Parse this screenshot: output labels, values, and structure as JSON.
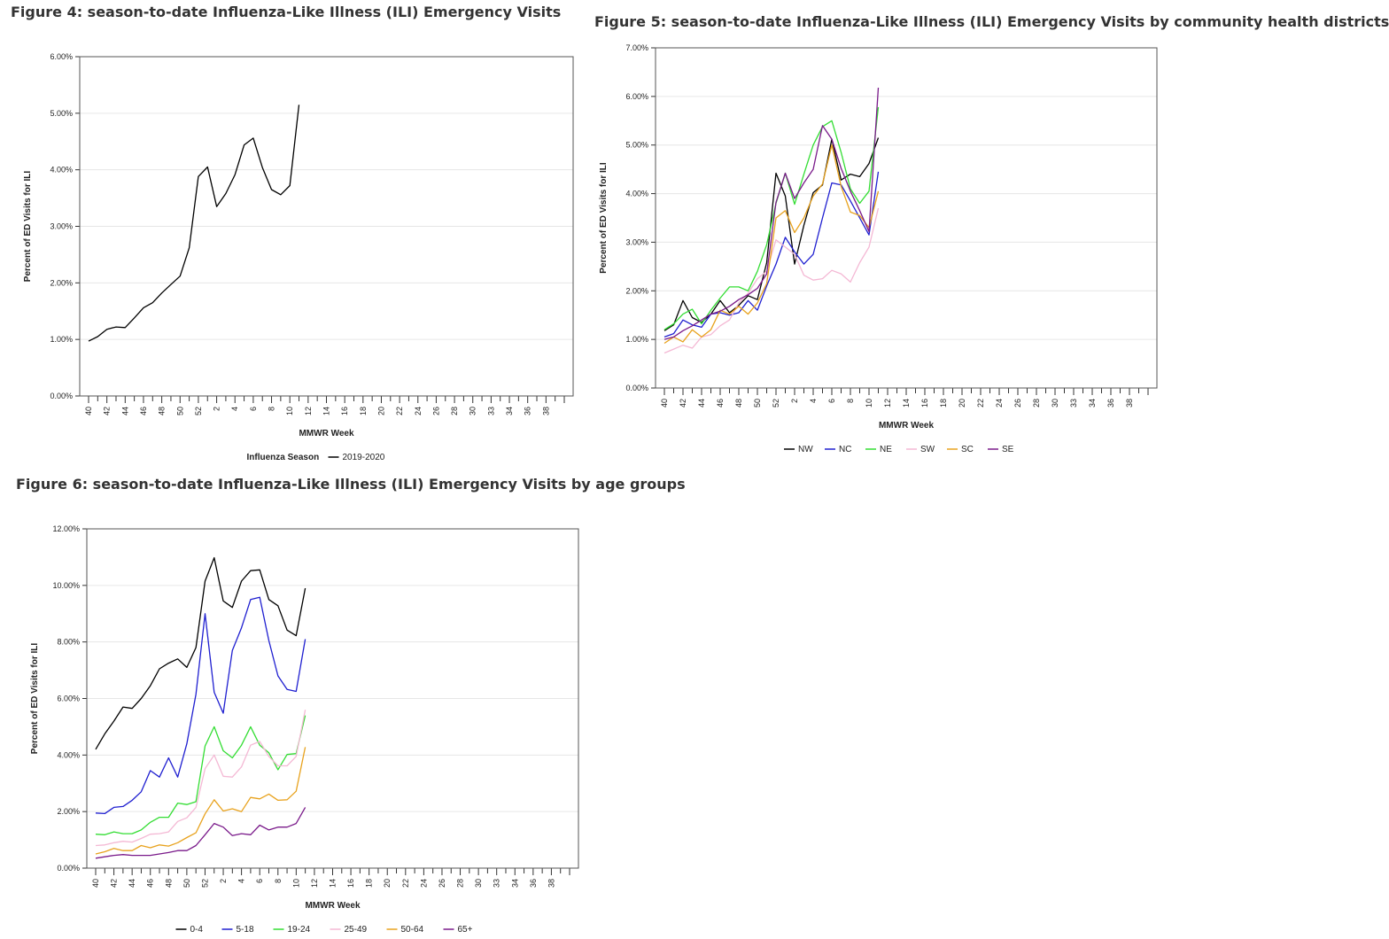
{
  "figures": [
    {
      "title": "Figure 4: season-to-date Influenza-Like Illness (ILI) Emergency Visits"
    },
    {
      "title": "Figure 5: season-to-date Influenza-Like Illness (ILI) Emergency Visits by community health districts"
    },
    {
      "title": "Figure 6: season-to-date Influenza-Like Illness (ILI) Emergency Visits by age groups"
    }
  ],
  "chart_data": [
    {
      "type": "line",
      "title": "Figure 4: season-to-date Influenza-Like Illness (ILI) Emergency Visits",
      "xlabel": "MMWR Week",
      "ylabel": "Percent of ED Visits for ILI",
      "ylim": [
        0,
        6
      ],
      "yticks": [
        "0.00%",
        "1.00%",
        "2.00%",
        "3.00%",
        "4.00%",
        "5.00%",
        "6.00%"
      ],
      "xtick_labels": [
        "40",
        "42",
        "44",
        "46",
        "48",
        "50",
        "52",
        "2",
        "4",
        "6",
        "8",
        "10",
        "12",
        "14",
        "16",
        "18",
        "20",
        "22",
        "24",
        "26",
        "28",
        "30",
        "33",
        "34",
        "36",
        "38"
      ],
      "week_count": 53,
      "grid": true,
      "legend": {
        "title": "Influenza Season",
        "position": "bottom"
      },
      "series": [
        {
          "name": "2019-2020",
          "color": "#000000",
          "values": [
            0.97,
            1.05,
            1.18,
            1.22,
            1.21,
            1.38,
            1.56,
            1.65,
            1.82,
            1.97,
            2.12,
            2.62,
            3.88,
            4.05,
            3.35,
            3.58,
            3.91,
            4.44,
            4.56,
            4.04,
            3.65,
            3.56,
            3.72,
            5.15
          ]
        }
      ]
    },
    {
      "type": "line",
      "title": "Figure 5: season-to-date Influenza-Like Illness (ILI) Emergency Visits by community health districts",
      "xlabel": "MMWR Week",
      "ylabel": "Percent of ED Visits for ILI",
      "ylim": [
        0,
        7
      ],
      "yticks": [
        "0.00%",
        "1.00%",
        "2.00%",
        "3.00%",
        "4.00%",
        "5.00%",
        "6.00%",
        "7.00%"
      ],
      "xtick_labels": [
        "40",
        "42",
        "44",
        "46",
        "48",
        "50",
        "52",
        "2",
        "4",
        "6",
        "8",
        "10",
        "12",
        "14",
        "16",
        "18",
        "20",
        "22",
        "24",
        "26",
        "28",
        "30",
        "33",
        "34",
        "36",
        "38"
      ],
      "week_count": 53,
      "grid": true,
      "legend": {
        "position": "bottom"
      },
      "series": [
        {
          "name": "NW",
          "color": "#000000",
          "values": [
            1.18,
            1.3,
            1.8,
            1.45,
            1.35,
            1.52,
            1.8,
            1.55,
            1.7,
            1.9,
            1.82,
            2.58,
            4.42,
            3.95,
            2.55,
            3.35,
            4.02,
            4.18,
            5.12,
            4.28,
            4.4,
            4.35,
            4.62,
            5.15
          ]
        },
        {
          "name": "NC",
          "color": "#1f1fd0",
          "values": [
            1.05,
            1.12,
            1.4,
            1.3,
            1.25,
            1.52,
            1.55,
            1.5,
            1.55,
            1.8,
            1.6,
            2.1,
            2.55,
            3.1,
            2.8,
            2.55,
            2.75,
            3.5,
            4.22,
            4.18,
            3.85,
            3.5,
            3.15,
            4.45
          ]
        },
        {
          "name": "NE",
          "color": "#33dd33",
          "values": [
            1.2,
            1.32,
            1.52,
            1.62,
            1.32,
            1.6,
            1.85,
            2.08,
            2.08,
            2.0,
            2.4,
            2.95,
            3.8,
            4.42,
            3.78,
            4.4,
            5.0,
            5.38,
            5.5,
            4.85,
            4.1,
            3.8,
            4.05,
            5.78
          ]
        },
        {
          "name": "SW",
          "color": "#f4b8d4",
          "values": [
            0.72,
            0.8,
            0.88,
            0.82,
            1.05,
            1.1,
            1.28,
            1.4,
            1.75,
            1.95,
            2.25,
            2.4,
            3.05,
            2.9,
            2.75,
            2.32,
            2.22,
            2.25,
            2.42,
            2.35,
            2.18,
            2.58,
            2.9,
            3.7
          ]
        },
        {
          "name": "SC",
          "color": "#e8a21d",
          "values": [
            0.92,
            1.05,
            0.95,
            1.2,
            1.05,
            1.2,
            1.6,
            1.52,
            1.68,
            1.52,
            1.75,
            2.15,
            3.5,
            3.65,
            3.2,
            3.5,
            3.95,
            4.2,
            5.0,
            4.15,
            3.62,
            3.55,
            3.3,
            4.05
          ]
        },
        {
          "name": "SE",
          "color": "#7a1a8a",
          "values": [
            1.0,
            1.05,
            1.18,
            1.28,
            1.4,
            1.52,
            1.58,
            1.68,
            1.82,
            1.92,
            2.05,
            2.35,
            3.82,
            4.42,
            3.9,
            4.22,
            4.5,
            5.4,
            5.12,
            4.52,
            4.05,
            3.65,
            3.22,
            6.18
          ]
        }
      ]
    },
    {
      "type": "line",
      "title": "Figure 6: season-to-date Influenza-Like Illness (ILI) Emergency Visits by age groups",
      "xlabel": "MMWR Week",
      "ylabel": "Percent of ED Visits for ILI",
      "ylim": [
        0,
        12
      ],
      "yticks": [
        "0.00%",
        "2.00%",
        "4.00%",
        "6.00%",
        "8.00%",
        "10.00%",
        "12.00%"
      ],
      "xtick_labels": [
        "40",
        "42",
        "44",
        "46",
        "48",
        "50",
        "52",
        "2",
        "4",
        "6",
        "8",
        "10",
        "12",
        "14",
        "16",
        "18",
        "20",
        "22",
        "24",
        "26",
        "28",
        "30",
        "33",
        "34",
        "36",
        "38"
      ],
      "week_count": 53,
      "grid": true,
      "legend": {
        "position": "bottom"
      },
      "series": [
        {
          "name": "0-4",
          "color": "#000000",
          "values": [
            4.2,
            4.75,
            5.2,
            5.7,
            5.65,
            6.0,
            6.45,
            7.05,
            7.25,
            7.4,
            7.1,
            7.8,
            10.15,
            10.98,
            9.45,
            9.22,
            10.15,
            10.52,
            10.55,
            9.5,
            9.28,
            8.42,
            8.22,
            9.9
          ]
        },
        {
          "name": "5-18",
          "color": "#1f1fd0",
          "values": [
            1.95,
            1.93,
            2.15,
            2.18,
            2.4,
            2.7,
            3.45,
            3.22,
            3.9,
            3.22,
            4.4,
            6.15,
            9.0,
            6.22,
            5.48,
            7.7,
            8.5,
            9.5,
            9.58,
            8.05,
            6.8,
            6.32,
            6.25,
            8.1
          ]
        },
        {
          "name": "19-24",
          "color": "#33dd33",
          "values": [
            1.2,
            1.18,
            1.28,
            1.22,
            1.22,
            1.35,
            1.62,
            1.8,
            1.8,
            2.3,
            2.25,
            2.35,
            4.32,
            5.0,
            4.15,
            3.9,
            4.35,
            5.0,
            4.35,
            4.08,
            3.48,
            4.02,
            4.05,
            5.4
          ]
        },
        {
          "name": "25-49",
          "color": "#f4b8d4",
          "values": [
            0.8,
            0.82,
            0.9,
            0.95,
            0.92,
            1.05,
            1.2,
            1.22,
            1.28,
            1.65,
            1.78,
            2.15,
            3.52,
            4.0,
            3.25,
            3.22,
            3.58,
            4.35,
            4.48,
            3.95,
            3.62,
            3.62,
            3.95,
            5.6
          ]
        },
        {
          "name": "50-64",
          "color": "#e8a21d",
          "values": [
            0.5,
            0.58,
            0.7,
            0.62,
            0.62,
            0.8,
            0.72,
            0.82,
            0.78,
            0.9,
            1.08,
            1.25,
            1.92,
            2.42,
            2.02,
            2.1,
            2.0,
            2.5,
            2.45,
            2.62,
            2.4,
            2.42,
            2.72,
            4.28
          ]
        },
        {
          "name": "65+",
          "color": "#7a1a8a",
          "values": [
            0.35,
            0.4,
            0.45,
            0.48,
            0.45,
            0.45,
            0.45,
            0.5,
            0.55,
            0.62,
            0.62,
            0.8,
            1.18,
            1.58,
            1.45,
            1.15,
            1.22,
            1.18,
            1.52,
            1.35,
            1.45,
            1.45,
            1.58,
            2.15
          ]
        }
      ]
    }
  ]
}
